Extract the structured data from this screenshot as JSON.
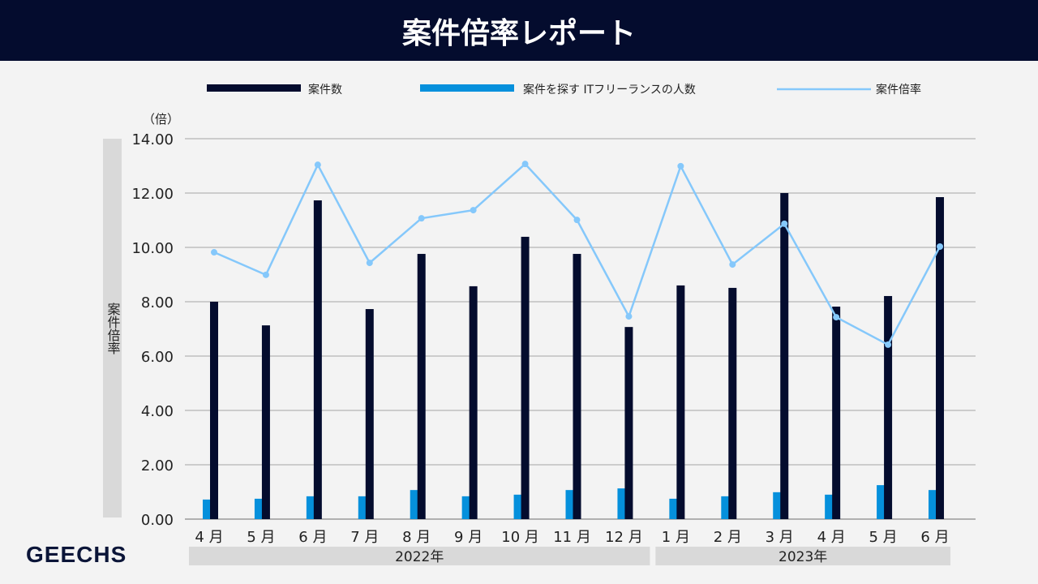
{
  "header": {
    "title": "案件倍率レポート"
  },
  "logo": "GEECHS",
  "chart_data": {
    "type": "bar+line",
    "title": "案件倍率レポート",
    "ylabel": "案件倍率",
    "yunit": "（倍）",
    "ylim": [
      0,
      14
    ],
    "yticks": [
      "0.00",
      "2.00",
      "4.00",
      "6.00",
      "8.00",
      "10.00",
      "12.00",
      "14.00"
    ],
    "grid": true,
    "legend_position": "top",
    "categories": [
      "4 月",
      "5 月",
      "6 月",
      "7 月",
      "8 月",
      "9 月",
      "10 月",
      "11 月",
      "12 月",
      "1 月",
      "2 月",
      "3 月",
      "4 月",
      "5 月",
      "6 月"
    ],
    "year_groups": [
      {
        "label": "2022年",
        "count": 9
      },
      {
        "label": "2023年",
        "count": 6
      }
    ],
    "series": [
      {
        "name": "案件数",
        "type": "bar",
        "color": "#040c2e",
        "values": [
          8.0,
          7.13,
          11.73,
          7.73,
          9.76,
          8.57,
          10.39,
          9.76,
          7.07,
          8.6,
          8.51,
          12.0,
          7.82,
          8.21,
          11.85
        ]
      },
      {
        "name": "案件を探す ITフリーランスの人数",
        "type": "bar",
        "color": "#0590dc",
        "values": [
          0.72,
          0.75,
          0.84,
          0.84,
          1.07,
          0.84,
          0.9,
          1.07,
          1.13,
          0.75,
          0.84,
          0.99,
          0.9,
          1.25,
          1.07
        ]
      },
      {
        "name": "案件倍率",
        "type": "line",
        "color": "#85c8fb",
        "values": [
          9.82,
          8.99,
          13.04,
          9.43,
          11.07,
          11.37,
          13.07,
          11.01,
          7.46,
          12.99,
          9.37,
          10.87,
          7.43,
          6.42,
          10.03
        ]
      }
    ]
  }
}
